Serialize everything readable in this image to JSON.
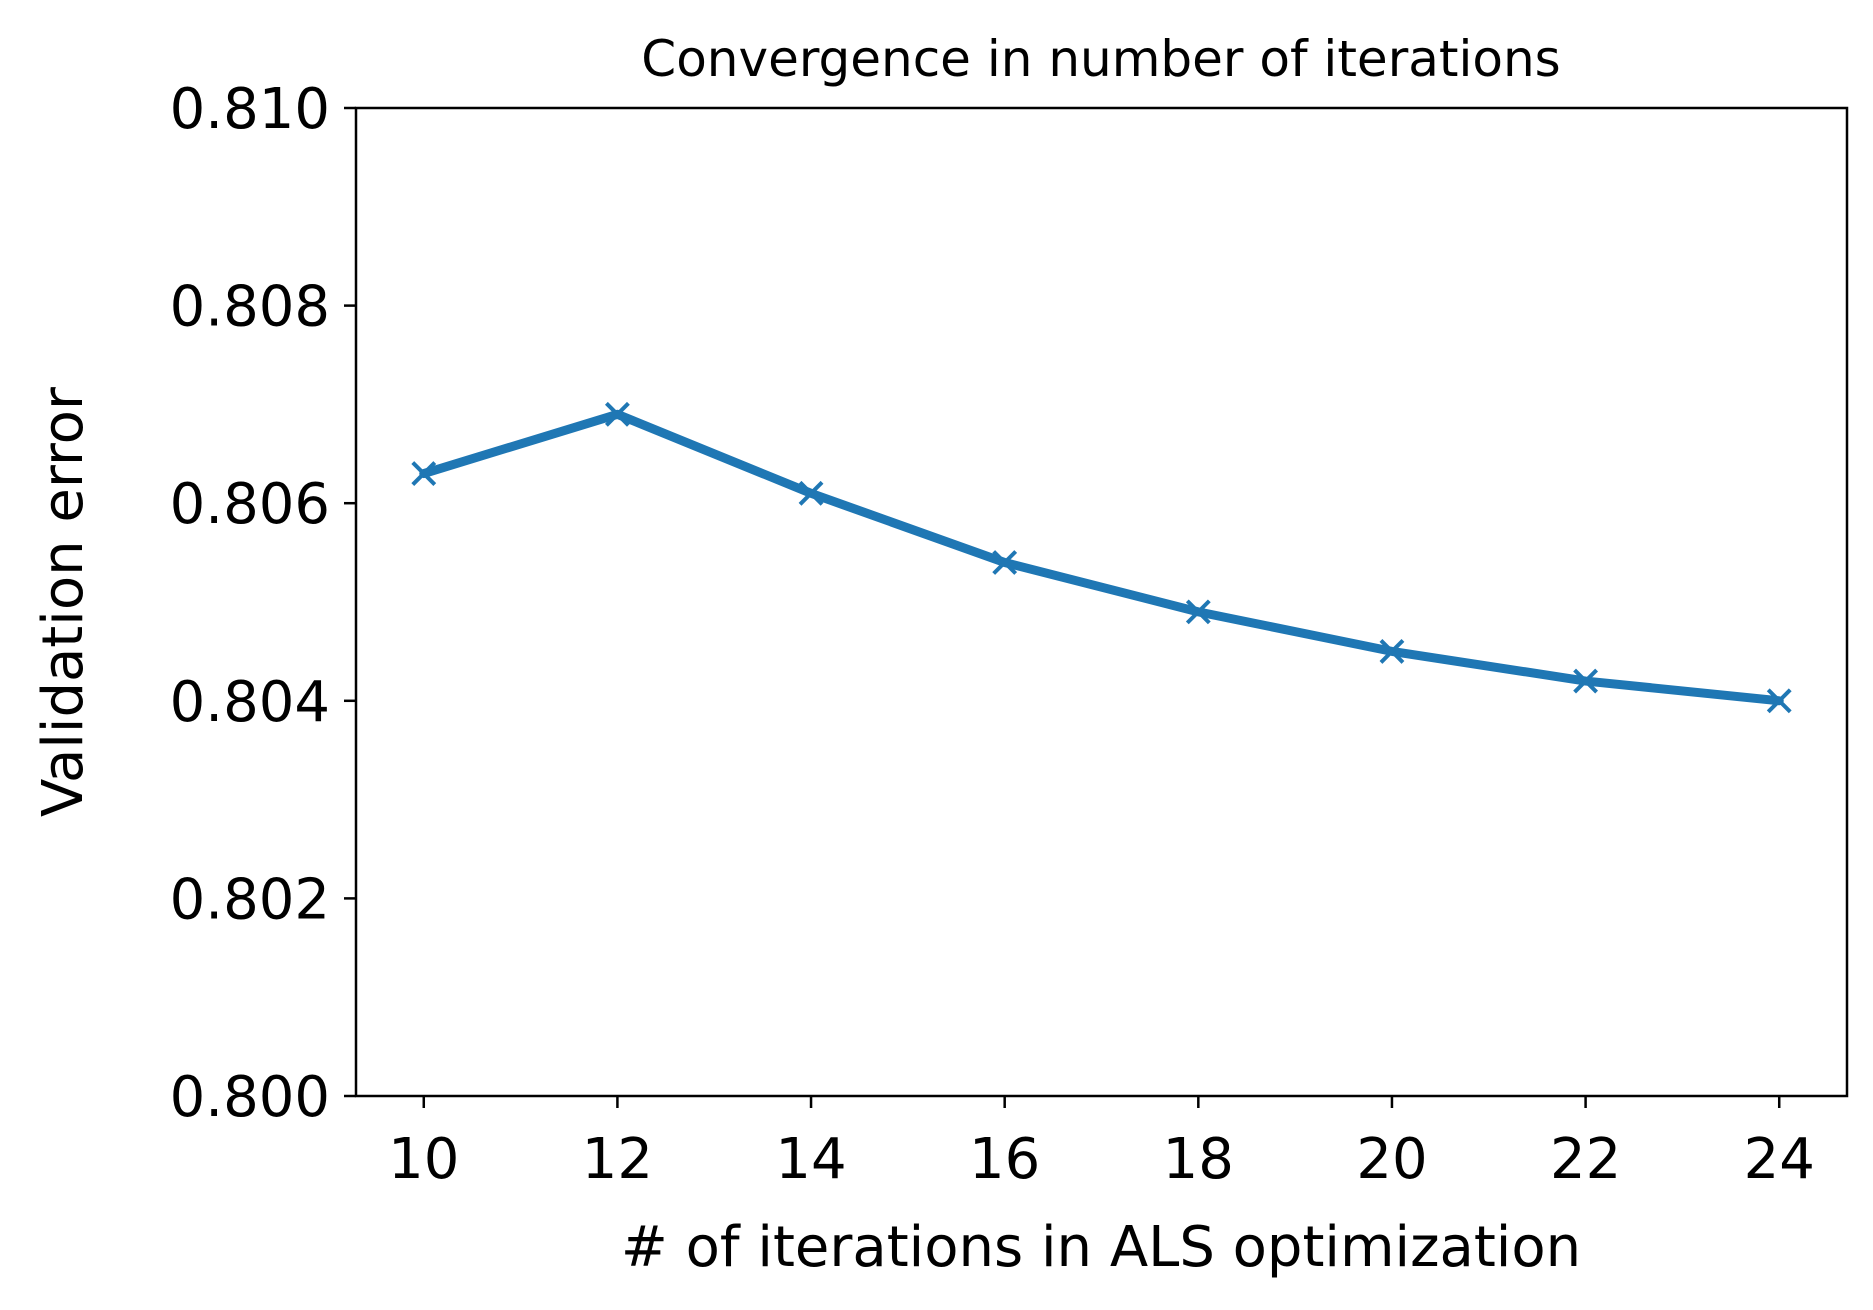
{
  "chart_data": {
    "type": "line",
    "title": "Convergence in number of iterations",
    "xlabel": "# of iterations in ALS optimization",
    "ylabel": "Validation error",
    "x": [
      10,
      12,
      14,
      16,
      18,
      20,
      22,
      24
    ],
    "xticks": [
      "10",
      "12",
      "14",
      "16",
      "18",
      "20",
      "22",
      "24"
    ],
    "yticks": [
      "0.800",
      "0.802",
      "0.804",
      "0.806",
      "0.808",
      "0.810"
    ],
    "ylim": [
      0.8,
      0.81
    ],
    "xlim": [
      9.3,
      24.7
    ],
    "series": [
      {
        "values": [
          0.8063,
          0.8069,
          0.8061,
          0.8054,
          0.8049,
          0.8045,
          0.8042,
          0.804
        ],
        "marker": "x",
        "color": "#1f77b4"
      }
    ],
    "grid": false,
    "legend": "none"
  }
}
